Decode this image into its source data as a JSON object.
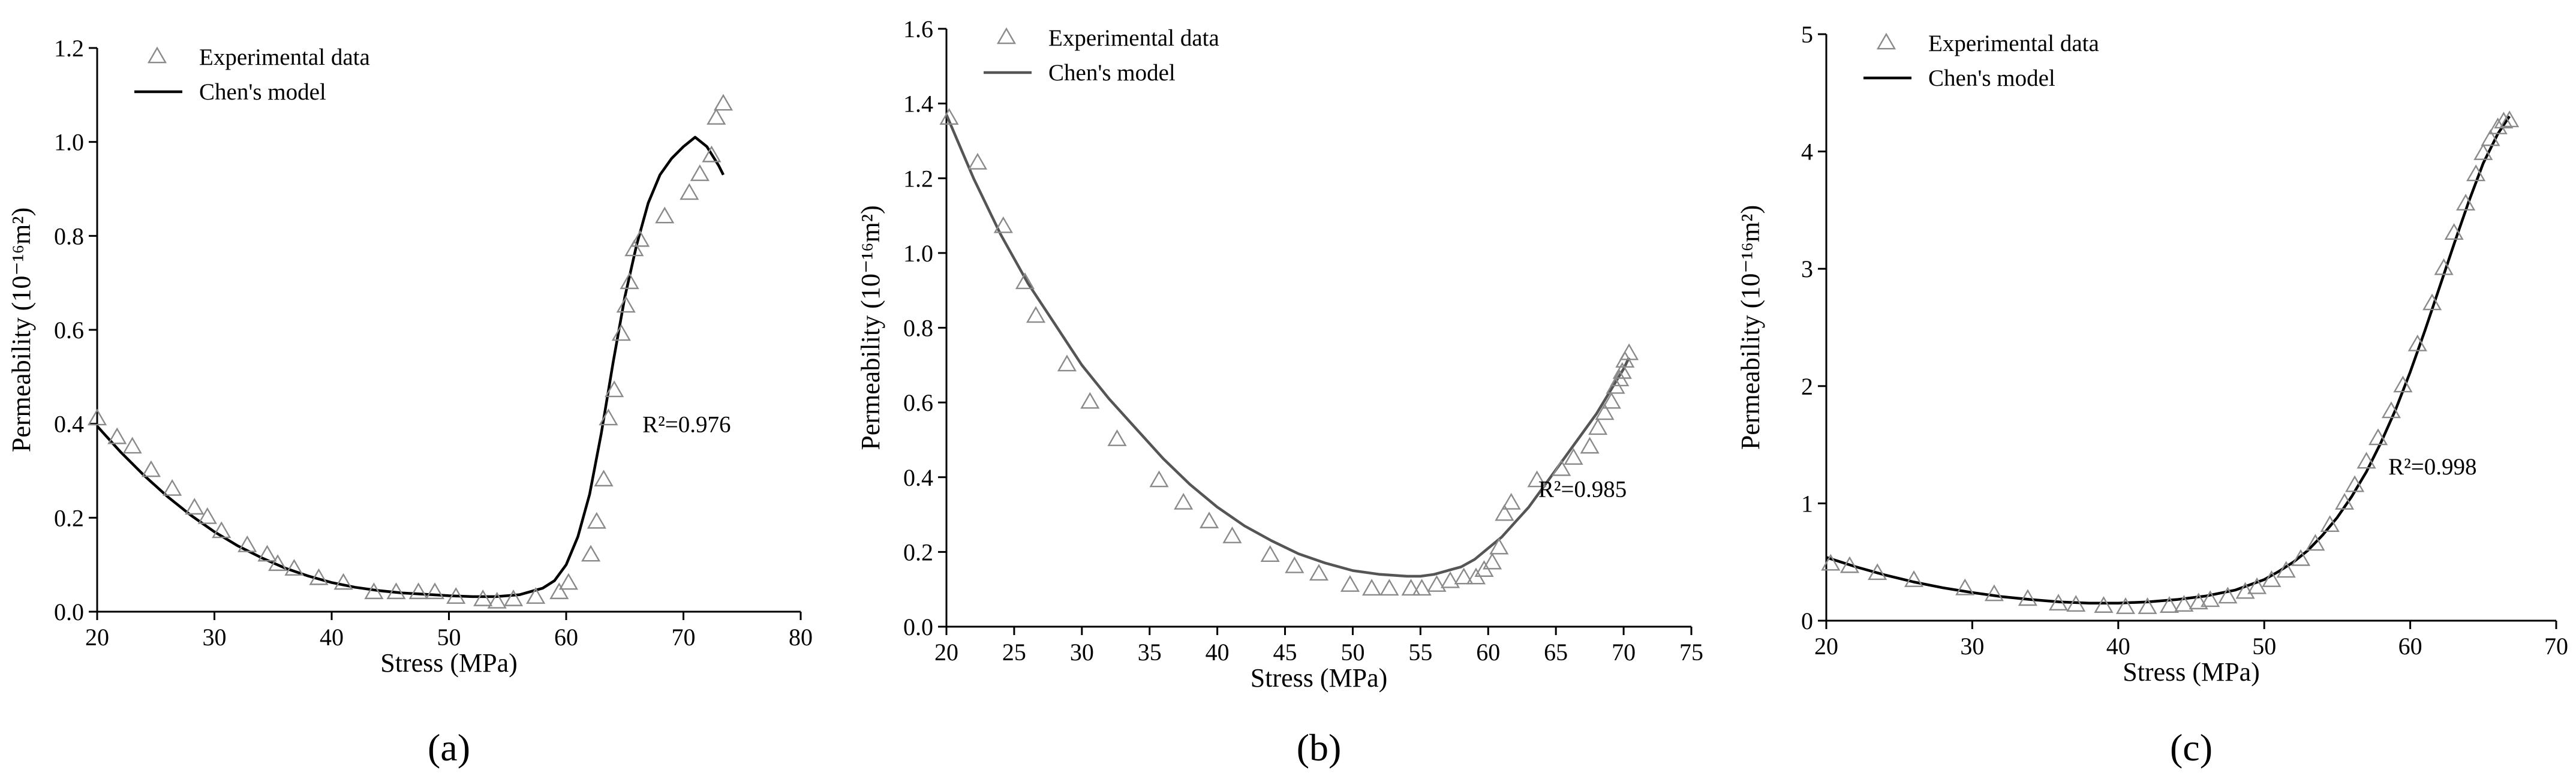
{
  "chart_data": [
    {
      "type": "scatter",
      "panel_label": "(a)",
      "xlabel": "Stress (MPa)",
      "ylabel": "Permeability (10⁻¹⁶m²)",
      "xlim": [
        20,
        80
      ],
      "ylim": [
        0.0,
        1.2
      ],
      "xticks": [
        20,
        30,
        40,
        50,
        60,
        70,
        80
      ],
      "yticks": [
        0.0,
        0.2,
        0.4,
        0.6,
        0.8,
        1.0,
        1.2
      ],
      "ytick_decimals": 1,
      "legend": {
        "position": "top-left",
        "markers_label": "Experimental data",
        "line_label": "Chen's model"
      },
      "annotation": {
        "text": "R²=0.976",
        "x": 66.5,
        "y": 0.4
      },
      "line_color": "#000000",
      "series": [
        {
          "name": "Experimental data",
          "kind": "markers",
          "x": [
            20,
            21.7,
            23,
            24.6,
            26.4,
            28.3,
            29.4,
            30.6,
            32.8,
            34.5,
            35.4,
            36.8,
            38.9,
            41,
            43.6,
            45.5,
            47.4,
            48.8,
            50.6,
            52.9,
            54.1,
            55.5,
            57.4,
            59.4,
            60.2,
            62.1,
            62.6,
            63.2,
            63.6,
            64.1,
            64.7,
            65.1,
            65.4,
            65.8,
            66.3,
            68.4,
            70.5,
            71.4,
            72.4,
            72.8,
            73.4
          ],
          "y": [
            0.41,
            0.37,
            0.35,
            0.3,
            0.26,
            0.22,
            0.2,
            0.17,
            0.14,
            0.12,
            0.1,
            0.09,
            0.07,
            0.06,
            0.04,
            0.04,
            0.04,
            0.04,
            0.03,
            0.025,
            0.02,
            0.025,
            0.03,
            0.04,
            0.06,
            0.12,
            0.19,
            0.28,
            0.41,
            0.47,
            0.59,
            0.65,
            0.7,
            0.77,
            0.79,
            0.84,
            0.89,
            0.93,
            0.97,
            1.05,
            1.08
          ]
        },
        {
          "name": "Chen's model",
          "kind": "line",
          "x": [
            20,
            22,
            24,
            26,
            28,
            30,
            32,
            34,
            36,
            38,
            40,
            42,
            44,
            46,
            48,
            50,
            52,
            54,
            56,
            58,
            59,
            60,
            61,
            62,
            63,
            64,
            65,
            66,
            67,
            68,
            69,
            70,
            71,
            72,
            73,
            73.4
          ],
          "y": [
            0.395,
            0.34,
            0.29,
            0.245,
            0.205,
            0.17,
            0.14,
            0.115,
            0.093,
            0.076,
            0.062,
            0.052,
            0.045,
            0.04,
            0.037,
            0.034,
            0.032,
            0.032,
            0.036,
            0.05,
            0.066,
            0.1,
            0.16,
            0.25,
            0.38,
            0.53,
            0.67,
            0.78,
            0.87,
            0.93,
            0.965,
            0.99,
            1.01,
            0.99,
            0.95,
            0.93
          ]
        }
      ]
    },
    {
      "type": "scatter",
      "panel_label": "(b)",
      "xlabel": "Stress (MPa)",
      "ylabel": "Permeability (10⁻¹⁶m²)",
      "xlim": [
        20,
        75
      ],
      "ylim": [
        0.0,
        1.6
      ],
      "xticks": [
        20,
        25,
        30,
        35,
        40,
        45,
        50,
        55,
        60,
        65,
        70,
        75
      ],
      "yticks": [
        0.0,
        0.2,
        0.4,
        0.6,
        0.8,
        1.0,
        1.2,
        1.4,
        1.6
      ],
      "ytick_decimals": 1,
      "legend": {
        "position": "top-left",
        "markers_label": "Experimental data",
        "line_label": "Chen's model"
      },
      "annotation": {
        "text": "R²=0.985",
        "x": 63.7,
        "y": 0.37
      },
      "line_color": "#555555",
      "series": [
        {
          "name": "Experimental data",
          "kind": "markers",
          "x": [
            20.2,
            22.3,
            24.2,
            25.8,
            26.6,
            28.9,
            30.6,
            32.6,
            35.7,
            37.5,
            39.4,
            41.1,
            43.9,
            45.7,
            47.5,
            49.8,
            51.4,
            52.7,
            54.3,
            55.1,
            56.2,
            57.2,
            58.2,
            59.1,
            59.7,
            60.3,
            60.8,
            61.2,
            61.7,
            63.6,
            65.4,
            66.3,
            67.5,
            68.1,
            68.6,
            69.1,
            69.4,
            69.7,
            69.9,
            70.1,
            70.4
          ],
          "y": [
            1.36,
            1.24,
            1.07,
            0.92,
            0.83,
            0.7,
            0.6,
            0.5,
            0.39,
            0.33,
            0.28,
            0.24,
            0.19,
            0.16,
            0.14,
            0.11,
            0.1,
            0.1,
            0.1,
            0.1,
            0.11,
            0.12,
            0.13,
            0.13,
            0.15,
            0.17,
            0.21,
            0.3,
            0.33,
            0.39,
            0.42,
            0.45,
            0.48,
            0.53,
            0.57,
            0.6,
            0.64,
            0.66,
            0.68,
            0.71,
            0.73
          ]
        },
        {
          "name": "Chen's model",
          "kind": "line",
          "x": [
            20,
            22,
            24,
            26,
            28,
            30,
            32,
            34,
            36,
            38,
            40,
            42,
            44,
            46,
            48,
            50,
            52,
            54,
            55,
            56,
            57,
            58,
            59,
            60,
            61,
            62,
            63,
            64,
            65,
            66,
            67,
            68,
            69,
            70,
            70.4
          ],
          "y": [
            1.37,
            1.2,
            1.05,
            0.92,
            0.81,
            0.7,
            0.61,
            0.53,
            0.45,
            0.38,
            0.32,
            0.27,
            0.23,
            0.195,
            0.17,
            0.15,
            0.14,
            0.135,
            0.135,
            0.14,
            0.15,
            0.16,
            0.18,
            0.21,
            0.24,
            0.28,
            0.32,
            0.37,
            0.42,
            0.47,
            0.52,
            0.57,
            0.63,
            0.69,
            0.72
          ]
        }
      ]
    },
    {
      "type": "scatter",
      "panel_label": "(c)",
      "xlabel": "Stress (MPa)",
      "ylabel": "Permeability (10⁻¹⁶m²)",
      "xlim": [
        20,
        70
      ],
      "ylim": [
        0,
        5
      ],
      "xticks": [
        20,
        30,
        40,
        50,
        60,
        70
      ],
      "yticks": [
        0,
        1,
        2,
        3,
        4,
        5
      ],
      "ytick_decimals": 0,
      "legend": {
        "position": "top-left",
        "markers_label": "Experimental data",
        "line_label": "Chen's model"
      },
      "annotation": {
        "text": "R²=0.998",
        "x": 58.5,
        "y": 1.32
      },
      "line_color": "#000000",
      "series": [
        {
          "name": "Experimental data",
          "kind": "markers",
          "x": [
            20.3,
            21.6,
            23.5,
            26,
            29.5,
            31.5,
            33.8,
            35.9,
            37.1,
            39,
            40.5,
            42,
            43.5,
            44.5,
            45.5,
            46.3,
            47.5,
            48.7,
            49.5,
            50.5,
            51.5,
            52.5,
            53.5,
            54.5,
            55.5,
            56.2,
            57,
            57.8,
            58.7,
            59.5,
            60.5,
            61.5,
            62.3,
            63,
            63.8,
            64.5,
            65,
            65.5,
            66,
            66.4,
            66.8
          ],
          "y": [
            0.48,
            0.46,
            0.4,
            0.34,
            0.27,
            0.22,
            0.18,
            0.14,
            0.13,
            0.12,
            0.11,
            0.11,
            0.12,
            0.13,
            0.15,
            0.17,
            0.2,
            0.24,
            0.28,
            0.34,
            0.42,
            0.52,
            0.65,
            0.81,
            1.0,
            1.15,
            1.35,
            1.55,
            1.78,
            2.0,
            2.35,
            2.7,
            3.0,
            3.3,
            3.55,
            3.8,
            3.98,
            4.1,
            4.2,
            4.25,
            4.26
          ]
        },
        {
          "name": "Chen's model",
          "kind": "line",
          "x": [
            20,
            22,
            24,
            26,
            28,
            30,
            32,
            34,
            36,
            38,
            40,
            42,
            44,
            46,
            48,
            50,
            51,
            52,
            53,
            54,
            55,
            56,
            57,
            58,
            59,
            60,
            61,
            62,
            63,
            64,
            65,
            66,
            66.8
          ],
          "y": [
            0.54,
            0.46,
            0.39,
            0.33,
            0.28,
            0.24,
            0.205,
            0.18,
            0.16,
            0.15,
            0.15,
            0.16,
            0.18,
            0.21,
            0.26,
            0.35,
            0.42,
            0.5,
            0.6,
            0.73,
            0.88,
            1.06,
            1.27,
            1.52,
            1.8,
            2.12,
            2.47,
            2.84,
            3.21,
            3.57,
            3.9,
            4.15,
            4.3
          ]
        }
      ]
    }
  ]
}
